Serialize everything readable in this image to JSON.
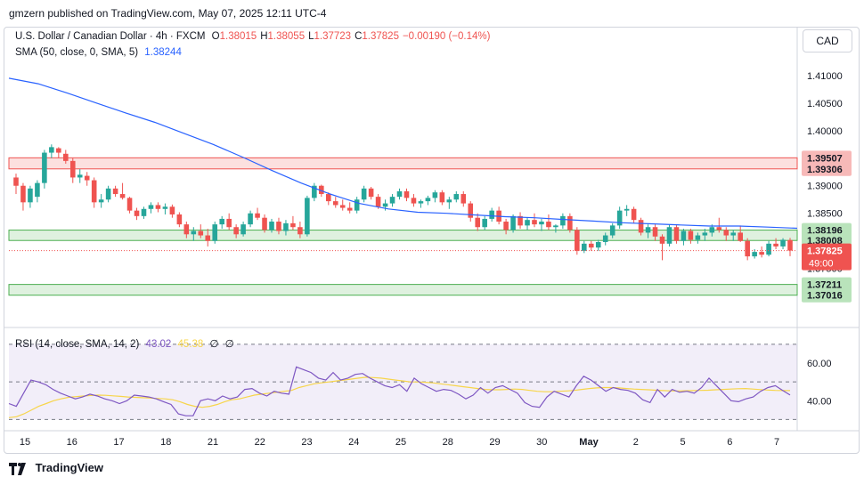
{
  "header": {
    "publish_text": "gmzern published on TradingView.com, May 07, 2025 12:11 UTC-4"
  },
  "currency": "CAD",
  "legend": {
    "symbol": "U.S. Dollar / Canadian Dollar · 4h · FXCM",
    "o_label": "O",
    "o": "1.38015",
    "h_label": "H",
    "h": "1.38055",
    "l_label": "L",
    "l": "1.37723",
    "c_label": "C",
    "c": "1.37825",
    "change": "−0.00190 (−0.14%)",
    "sma_label": "SMA (50, close, 0, SMA, 5)",
    "sma_value": "1.38244",
    "rsi_label": "RSI (14, close, SMA, 14, 2)",
    "rsi_value": "43.02",
    "rsi_ma_value": "45.38",
    "rsi_extra1": "∅",
    "rsi_extra2": "∅"
  },
  "footer": {
    "brand": "TradingView"
  },
  "colors": {
    "up": "#26a69a",
    "down": "#ef5350",
    "sma": "#2962ff",
    "rsi": "#7e57c2",
    "rsi_ma": "#f7d54a"
  },
  "chart_data": {
    "type": "candlestick",
    "x_ticks": [
      "15",
      "16",
      "17",
      "18",
      "21",
      "22",
      "23",
      "24",
      "25",
      "28",
      "29",
      "30",
      "May",
      "2",
      "5",
      "6",
      "7"
    ],
    "y_ticks": [
      "1.41000",
      "1.40500",
      "1.40000",
      "1.39500",
      "1.39000",
      "1.38500",
      "1.38000",
      "1.37500"
    ],
    "ylim": [
      1.3685,
      1.414
    ],
    "zones": [
      {
        "low": 1.39306,
        "high": 1.39507,
        "kind": "resistance",
        "labels": [
          "1.39507",
          "1.39306"
        ]
      },
      {
        "low": 1.38008,
        "high": 1.38196,
        "kind": "support",
        "labels": [
          "1.38196",
          "1.38008"
        ]
      },
      {
        "low": 1.37016,
        "high": 1.37211,
        "kind": "support",
        "labels": [
          "1.37211",
          "1.37016"
        ]
      }
    ],
    "last_price": {
      "value": 1.37825,
      "label": "1.37825",
      "countdown": "49:00"
    },
    "candles": [
      [
        1.3915,
        1.3922,
        1.3885,
        1.39
      ],
      [
        1.39,
        1.3905,
        1.3855,
        1.387
      ],
      [
        1.387,
        1.39,
        1.386,
        1.3895
      ],
      [
        1.388,
        1.391,
        1.387,
        1.3905
      ],
      [
        1.3905,
        1.3965,
        1.3895,
        1.396
      ],
      [
        1.396,
        1.3975,
        1.395,
        1.397
      ],
      [
        1.3968,
        1.397,
        1.395,
        1.396
      ],
      [
        1.3958,
        1.3965,
        1.394,
        1.3945
      ],
      [
        1.3945,
        1.395,
        1.3905,
        1.3915
      ],
      [
        1.3915,
        1.393,
        1.3905,
        1.392
      ],
      [
        1.3918,
        1.3925,
        1.39,
        1.391
      ],
      [
        1.391,
        1.3915,
        1.386,
        1.387
      ],
      [
        1.387,
        1.3885,
        1.386,
        1.3875
      ],
      [
        1.3875,
        1.39,
        1.387,
        1.3895
      ],
      [
        1.3895,
        1.39,
        1.388,
        1.3885
      ],
      [
        1.3885,
        1.3905,
        1.3875,
        1.3878
      ],
      [
        1.3878,
        1.388,
        1.385,
        1.3855
      ],
      [
        1.3855,
        1.386,
        1.3838,
        1.3845
      ],
      [
        1.3845,
        1.3862,
        1.384,
        1.3858
      ],
      [
        1.3858,
        1.387,
        1.385,
        1.3865
      ],
      [
        1.3865,
        1.387,
        1.3852,
        1.3858
      ],
      [
        1.3858,
        1.3868,
        1.3848,
        1.3862
      ],
      [
        1.3862,
        1.3866,
        1.3842,
        1.3848
      ],
      [
        1.3848,
        1.3852,
        1.3825,
        1.383
      ],
      [
        1.383,
        1.3835,
        1.3805,
        1.3812
      ],
      [
        1.3812,
        1.3825,
        1.38,
        1.3818
      ],
      [
        1.3818,
        1.383,
        1.3805,
        1.381
      ],
      [
        1.381,
        1.3822,
        1.379,
        1.38
      ],
      [
        1.38,
        1.3835,
        1.3795,
        1.383
      ],
      [
        1.383,
        1.3845,
        1.3822,
        1.384
      ],
      [
        1.384,
        1.385,
        1.382,
        1.3825
      ],
      [
        1.3825,
        1.383,
        1.3805,
        1.3812
      ],
      [
        1.3812,
        1.3835,
        1.3808,
        1.383
      ],
      [
        1.383,
        1.3855,
        1.3825,
        1.385
      ],
      [
        1.385,
        1.386,
        1.3838,
        1.3842
      ],
      [
        1.3842,
        1.3848,
        1.3815,
        1.382
      ],
      [
        1.382,
        1.384,
        1.3815,
        1.3835
      ],
      [
        1.3835,
        1.3842,
        1.3812,
        1.3818
      ],
      [
        1.3818,
        1.3838,
        1.381,
        1.3832
      ],
      [
        1.3832,
        1.3845,
        1.382,
        1.3825
      ],
      [
        1.3825,
        1.3835,
        1.3805,
        1.3812
      ],
      [
        1.3812,
        1.3882,
        1.3808,
        1.3878
      ],
      [
        1.3878,
        1.3905,
        1.3872,
        1.39
      ],
      [
        1.39,
        1.3902,
        1.388,
        1.3885
      ],
      [
        1.3885,
        1.3888,
        1.3865,
        1.3872
      ],
      [
        1.3872,
        1.388,
        1.386,
        1.3865
      ],
      [
        1.3865,
        1.3875,
        1.3855,
        1.386
      ],
      [
        1.386,
        1.387,
        1.385,
        1.3855
      ],
      [
        1.3855,
        1.388,
        1.385,
        1.3875
      ],
      [
        1.3875,
        1.39,
        1.387,
        1.3895
      ],
      [
        1.3895,
        1.3898,
        1.3875,
        1.388
      ],
      [
        1.388,
        1.3885,
        1.3858,
        1.3862
      ],
      [
        1.3862,
        1.3875,
        1.3855,
        1.3868
      ],
      [
        1.3868,
        1.3885,
        1.3862,
        1.388
      ],
      [
        1.388,
        1.3895,
        1.3875,
        1.389
      ],
      [
        1.389,
        1.3895,
        1.3872,
        1.3878
      ],
      [
        1.3878,
        1.3885,
        1.3862,
        1.3868
      ],
      [
        1.3868,
        1.3875,
        1.386,
        1.3872
      ],
      [
        1.3872,
        1.3882,
        1.3865,
        1.3878
      ],
      [
        1.3878,
        1.3892,
        1.387,
        1.3888
      ],
      [
        1.3888,
        1.3892,
        1.3865,
        1.387
      ],
      [
        1.387,
        1.388,
        1.3858,
        1.3875
      ],
      [
        1.3875,
        1.389,
        1.387,
        1.3885
      ],
      [
        1.3885,
        1.389,
        1.3862,
        1.3868
      ],
      [
        1.3868,
        1.3872,
        1.3835,
        1.3842
      ],
      [
        1.3842,
        1.385,
        1.3818,
        1.3825
      ],
      [
        1.3825,
        1.3845,
        1.382,
        1.384
      ],
      [
        1.384,
        1.386,
        1.3835,
        1.3855
      ],
      [
        1.3855,
        1.3862,
        1.383,
        1.3835
      ],
      [
        1.3835,
        1.384,
        1.3812,
        1.382
      ],
      [
        1.382,
        1.3848,
        1.3815,
        1.3845
      ],
      [
        1.3845,
        1.3852,
        1.3822,
        1.3828
      ],
      [
        1.3828,
        1.3842,
        1.382,
        1.3838
      ],
      [
        1.3838,
        1.385,
        1.3825,
        1.383
      ],
      [
        1.383,
        1.384,
        1.3818,
        1.3835
      ],
      [
        1.3835,
        1.3848,
        1.382,
        1.3825
      ],
      [
        1.3825,
        1.383,
        1.3815,
        1.3828
      ],
      [
        1.3828,
        1.385,
        1.3822,
        1.3845
      ],
      [
        1.3845,
        1.385,
        1.3815,
        1.382
      ],
      [
        1.382,
        1.3825,
        1.3775,
        1.3782
      ],
      [
        1.3782,
        1.38,
        1.3778,
        1.3795
      ],
      [
        1.3795,
        1.38,
        1.3782,
        1.3788
      ],
      [
        1.3788,
        1.3802,
        1.3782,
        1.3798
      ],
      [
        1.3798,
        1.3815,
        1.3792,
        1.381
      ],
      [
        1.381,
        1.3832,
        1.3805,
        1.3828
      ],
      [
        1.3828,
        1.3862,
        1.3822,
        1.3855
      ],
      [
        1.3855,
        1.3865,
        1.3845,
        1.3858
      ],
      [
        1.3858,
        1.3862,
        1.3832,
        1.3838
      ],
      [
        1.3838,
        1.3842,
        1.381,
        1.3815
      ],
      [
        1.3815,
        1.383,
        1.3805,
        1.3825
      ],
      [
        1.3825,
        1.383,
        1.38,
        1.3808
      ],
      [
        1.3808,
        1.3812,
        1.3765,
        1.3795
      ],
      [
        1.3795,
        1.383,
        1.379,
        1.3825
      ],
      [
        1.3825,
        1.383,
        1.3795,
        1.38
      ],
      [
        1.38,
        1.3822,
        1.3792,
        1.3818
      ],
      [
        1.3818,
        1.3822,
        1.3795,
        1.3802
      ],
      [
        1.3802,
        1.3815,
        1.3795,
        1.381
      ],
      [
        1.381,
        1.3822,
        1.38,
        1.3815
      ],
      [
        1.3815,
        1.383,
        1.3808,
        1.3825
      ],
      [
        1.3825,
        1.3842,
        1.3815,
        1.382
      ],
      [
        1.382,
        1.3825,
        1.38,
        1.381
      ],
      [
        1.381,
        1.382,
        1.38,
        1.3815
      ],
      [
        1.3815,
        1.3828,
        1.3798,
        1.38
      ],
      [
        1.38,
        1.3805,
        1.3765,
        1.3772
      ],
      [
        1.3772,
        1.3785,
        1.3768,
        1.378
      ],
      [
        1.378,
        1.379,
        1.377,
        1.3775
      ],
      [
        1.3775,
        1.38,
        1.3772,
        1.3795
      ],
      [
        1.3795,
        1.3805,
        1.3785,
        1.379
      ],
      [
        1.379,
        1.3805,
        1.3785,
        1.3802
      ],
      [
        1.38015,
        1.38055,
        1.37723,
        1.37825
      ]
    ],
    "sma": [
      1.4095,
      1.4085,
      1.4068,
      1.405,
      1.4032,
      1.4015,
      1.3995,
      1.3975,
      1.3952,
      1.3928,
      1.3905,
      1.3885,
      1.3868,
      1.3858,
      1.3852,
      1.385,
      1.3847,
      1.3844,
      1.3842,
      1.3839,
      1.3836,
      1.3833,
      1.3831,
      1.3829,
      1.3827,
      1.3827,
      1.3825,
      1.3823
    ],
    "rsi": [
      38.5,
      37,
      44,
      51,
      50,
      48.5,
      46,
      44,
      42.5,
      41,
      42,
      43.5,
      42.5,
      41,
      40,
      38.5,
      40,
      43,
      42.5,
      42,
      41,
      39.5,
      38,
      33,
      32,
      32,
      40,
      41,
      40,
      42.5,
      41,
      42,
      46,
      46.5,
      44,
      42.5,
      45,
      44,
      43.5,
      58,
      56.5,
      55,
      52,
      51,
      55,
      51,
      52,
      54,
      54.5,
      52,
      50,
      48,
      47,
      48.5,
      45,
      52,
      49,
      47,
      45,
      46,
      45.5,
      43.5,
      41,
      43,
      47,
      44,
      47,
      48,
      46,
      44,
      39,
      37,
      36.5,
      42,
      45,
      43.5,
      42,
      48,
      53,
      51,
      48,
      45,
      47,
      46,
      45.5,
      44,
      40.5,
      39,
      46,
      42,
      46,
      44.5,
      45,
      44,
      47,
      52,
      48,
      44,
      40,
      39.5,
      41,
      42,
      45,
      47,
      48,
      45.5,
      43.02
    ],
    "rsi_ma": [
      31,
      31.5,
      33,
      35,
      37,
      38.5,
      40,
      41,
      41.8,
      42.2,
      42.5,
      42.8,
      43,
      42.9,
      42.6,
      42.3,
      42,
      41.8,
      41.6,
      41.4,
      41.2,
      41,
      40.5,
      39.5,
      38,
      37,
      36.5,
      37,
      38,
      39.5,
      40.5,
      41,
      42,
      43,
      43.5,
      44,
      44.5,
      45,
      45.5,
      47,
      48,
      49,
      49.5,
      50,
      50.5,
      51,
      51.5,
      52,
      52.5,
      52.3,
      52,
      51.5,
      51,
      50.5,
      50,
      50,
      49.8,
      49.5,
      49,
      48.5,
      48,
      47.5,
      47,
      46.5,
      46,
      45.8,
      45.8,
      46,
      46.2,
      46,
      45.5,
      45,
      44.8,
      44.8,
      45,
      45.2,
      45.5,
      46,
      46.5,
      46.8,
      47,
      47,
      46.8,
      46.5,
      46.2,
      46,
      45.8,
      45.6,
      45.4,
      45.2,
      45.2,
      45.3,
      45.4,
      45.5,
      45.6,
      45.8,
      46,
      46.2,
      46.4,
      46.5,
      46.2,
      45.9,
      45.7,
      45.5,
      45.4,
      45.38
    ],
    "rsi_ylim": [
      25,
      78
    ],
    "rsi_levels": [
      70,
      50,
      30
    ],
    "rsi_ticks": [
      "60.00",
      "40.00"
    ]
  }
}
